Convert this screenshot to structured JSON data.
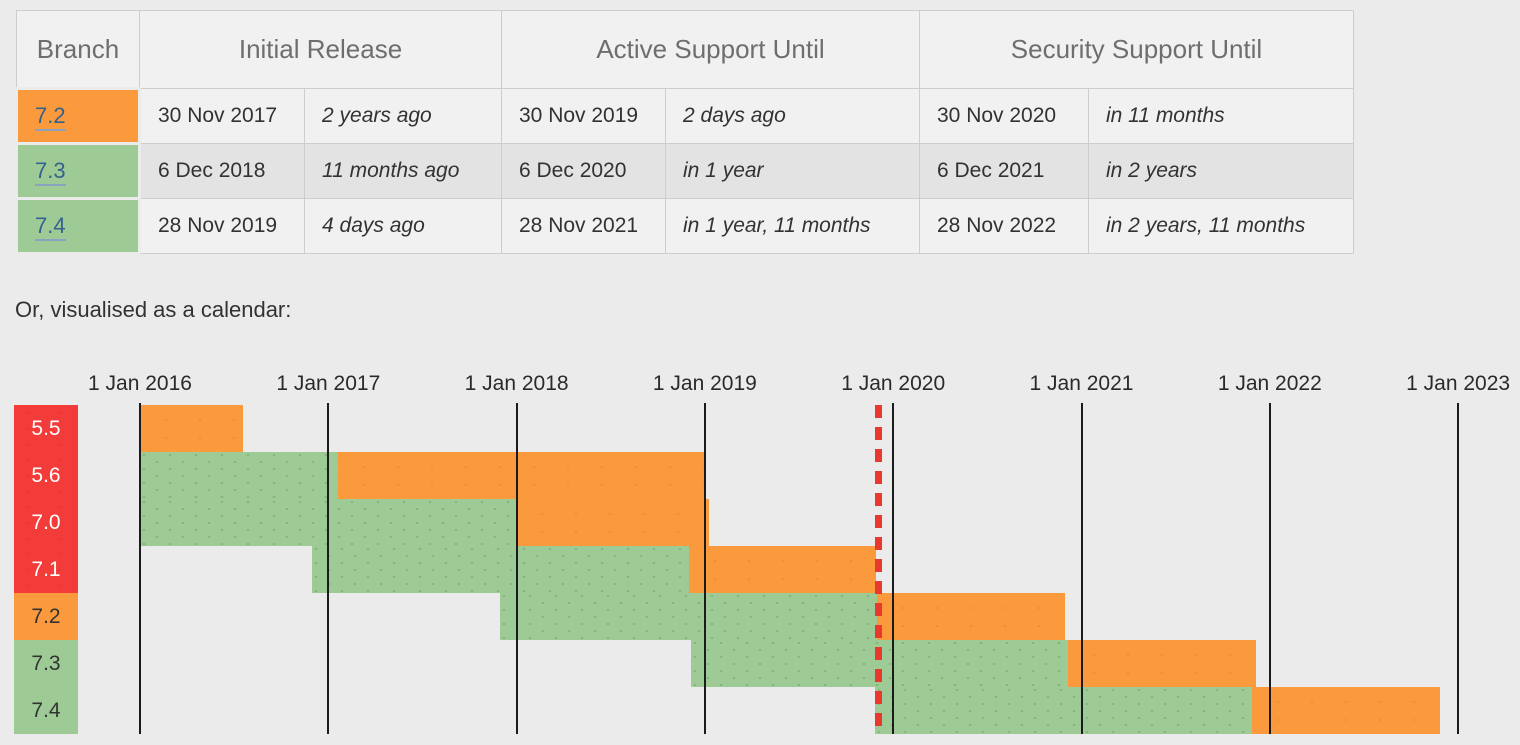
{
  "table": {
    "headers": {
      "branch": "Branch",
      "initial": "Initial Release",
      "active": "Active Support Until",
      "security": "Security Support Until"
    },
    "rows": [
      {
        "branch": "7.2",
        "state": "security",
        "initial_date": "30 Nov 2017",
        "initial_rel": "2 years ago",
        "active_date": "30 Nov 2019",
        "active_rel": "2 days ago",
        "security_date": "30 Nov 2020",
        "security_rel": "in 11 months"
      },
      {
        "branch": "7.3",
        "state": "active",
        "initial_date": "6 Dec 2018",
        "initial_rel": "11 months ago",
        "active_date": "6 Dec 2020",
        "active_rel": "in 1 year",
        "security_date": "6 Dec 2021",
        "security_rel": "in 2 years"
      },
      {
        "branch": "7.4",
        "state": "active",
        "initial_date": "28 Nov 2019",
        "initial_rel": "4 days ago",
        "active_date": "28 Nov 2021",
        "active_rel": "in 1 year, 11 months",
        "security_date": "28 Nov 2022",
        "security_rel": "in 2 years, 11 months"
      }
    ]
  },
  "calendar_caption": "Or, visualised as a calendar:",
  "colors": {
    "active_support": "#9ecb95",
    "security_support": "#fa9a3c",
    "end_of_life": "#f33c39",
    "today_marker": "#e9382e",
    "branch_link": "#35618e"
  },
  "chart_data": {
    "type": "timeline",
    "axis": {
      "start_year": 2016,
      "end_year": 2023.33,
      "gridlines": true
    },
    "x_ticks": [
      {
        "label": "1 Jan 2016",
        "year": 2016
      },
      {
        "label": "1 Jan 2017",
        "year": 2017
      },
      {
        "label": "1 Jan 2018",
        "year": 2018
      },
      {
        "label": "1 Jan 2019",
        "year": 2019
      },
      {
        "label": "1 Jan 2020",
        "year": 2020
      },
      {
        "label": "1 Jan 2021",
        "year": 2021
      },
      {
        "label": "1 Jan 2022",
        "year": 2022
      },
      {
        "label": "1 Jan 2023",
        "year": 2023
      }
    ],
    "today": {
      "year": 2019.917
    },
    "rows": [
      {
        "branch": "5.5",
        "label_state": "eol",
        "segments": [
          {
            "state": "security",
            "start": 2016.0,
            "end": 2016.547
          }
        ]
      },
      {
        "branch": "5.6",
        "label_state": "eol",
        "segments": [
          {
            "state": "active",
            "start": 2016.0,
            "end": 2017.051
          },
          {
            "state": "security",
            "start": 2017.051,
            "end": 2018.998
          }
        ]
      },
      {
        "branch": "7.0",
        "label_state": "eol",
        "segments": [
          {
            "state": "active",
            "start": 2016.0,
            "end": 2017.998
          },
          {
            "state": "security",
            "start": 2017.998,
            "end": 2019.022
          }
        ]
      },
      {
        "branch": "7.1",
        "label_state": "eol",
        "segments": [
          {
            "state": "active",
            "start": 2016.915,
            "end": 2018.915
          },
          {
            "state": "security",
            "start": 2018.915,
            "end": 2019.909
          }
        ]
      },
      {
        "branch": "7.2",
        "label_state": "security",
        "segments": [
          {
            "state": "active",
            "start": 2017.913,
            "end": 2019.913
          },
          {
            "state": "security",
            "start": 2019.913,
            "end": 2020.912
          }
        ]
      },
      {
        "branch": "7.3",
        "label_state": "active",
        "segments": [
          {
            "state": "active",
            "start": 2018.928,
            "end": 2020.928
          },
          {
            "state": "security",
            "start": 2020.928,
            "end": 2021.928
          }
        ]
      },
      {
        "branch": "7.4",
        "label_state": "active",
        "segments": [
          {
            "state": "active",
            "start": 2019.906,
            "end": 2021.906
          },
          {
            "state": "security",
            "start": 2021.906,
            "end": 2022.906
          }
        ]
      }
    ]
  }
}
